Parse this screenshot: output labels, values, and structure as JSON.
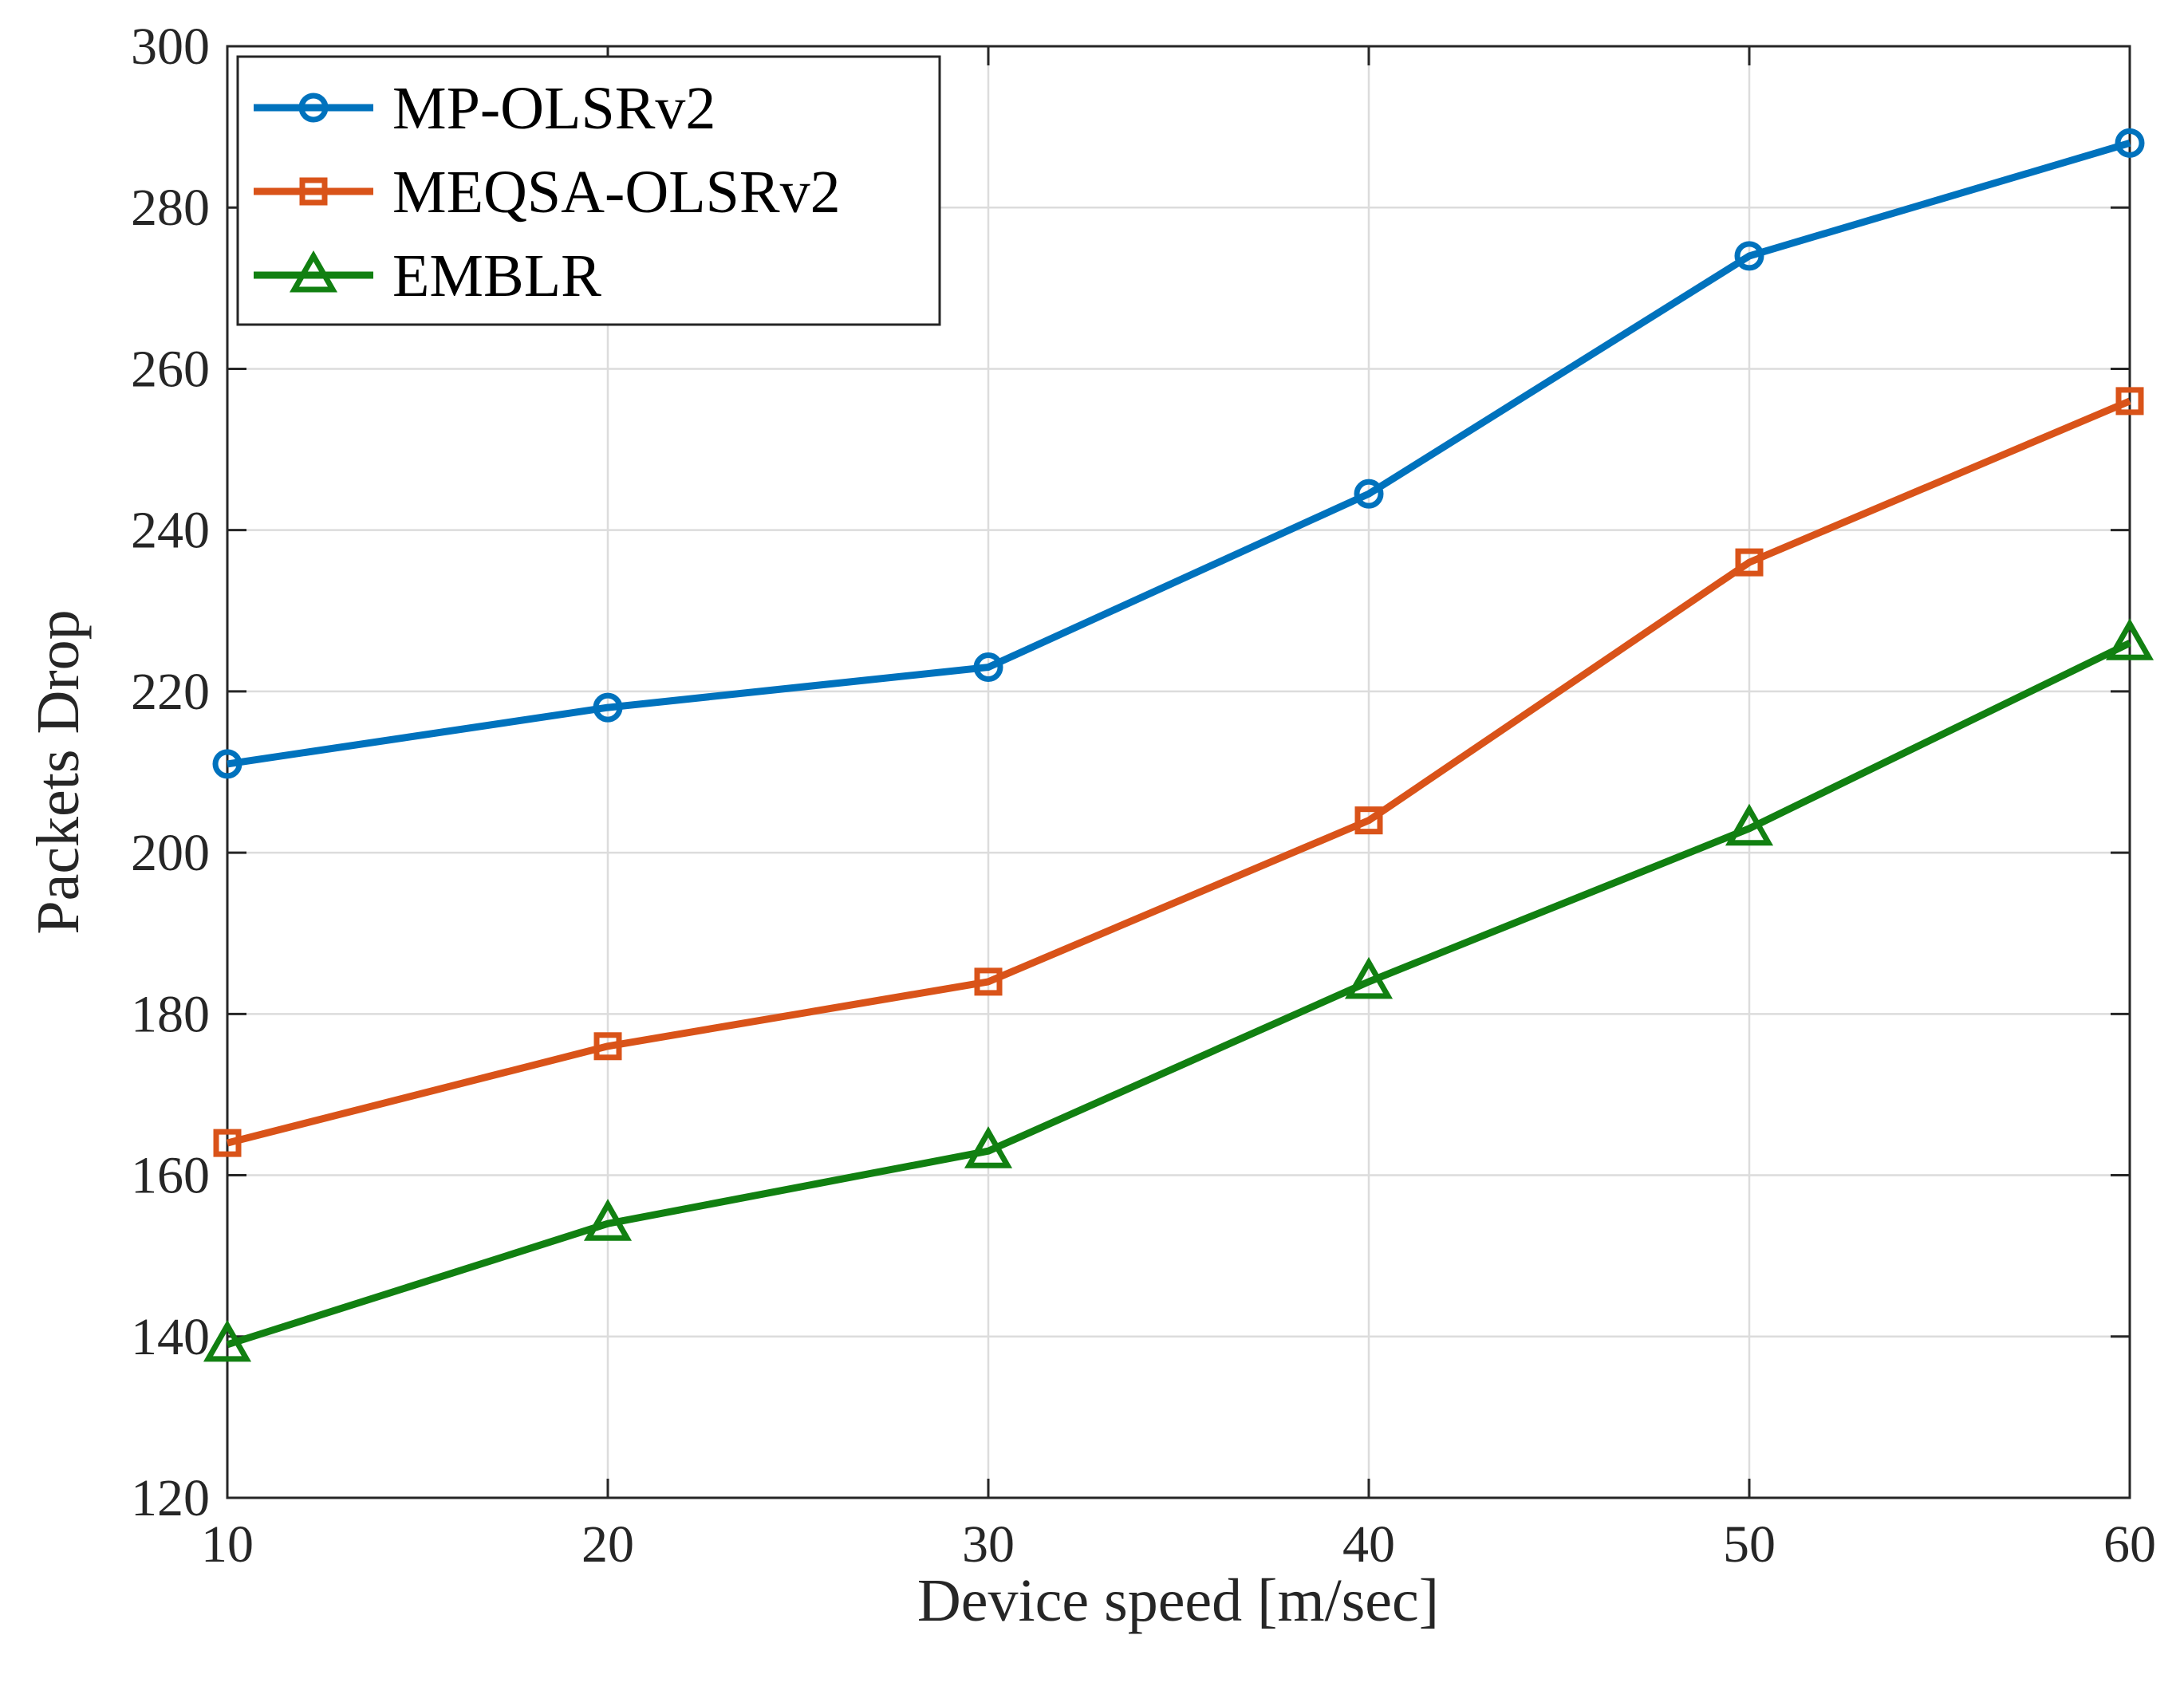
{
  "chart_data": {
    "type": "line",
    "title": "",
    "xlabel": "Device speed [m/sec]",
    "ylabel": "Packets Drop",
    "x": [
      10,
      20,
      30,
      40,
      50,
      60
    ],
    "xlim": [
      10,
      60
    ],
    "ylim": [
      120,
      300
    ],
    "xticks": [
      10,
      20,
      30,
      40,
      50,
      60
    ],
    "yticks": [
      120,
      140,
      160,
      180,
      200,
      220,
      240,
      260,
      280,
      300
    ],
    "grid": true,
    "legend_position": "top-left",
    "series": [
      {
        "name": "MP-OLSRv2",
        "marker": "circle",
        "color": "#0072BD",
        "values": [
          211,
          218,
          223,
          244.5,
          274,
          288
        ]
      },
      {
        "name": "MEQSA-OLSRv2",
        "marker": "square",
        "color": "#D95319",
        "values": [
          164,
          176,
          184,
          204,
          236,
          256
        ]
      },
      {
        "name": "EMBLR",
        "marker": "triangle",
        "color": "#118011",
        "values": [
          139,
          154,
          163,
          184,
          203,
          226
        ]
      }
    ]
  }
}
